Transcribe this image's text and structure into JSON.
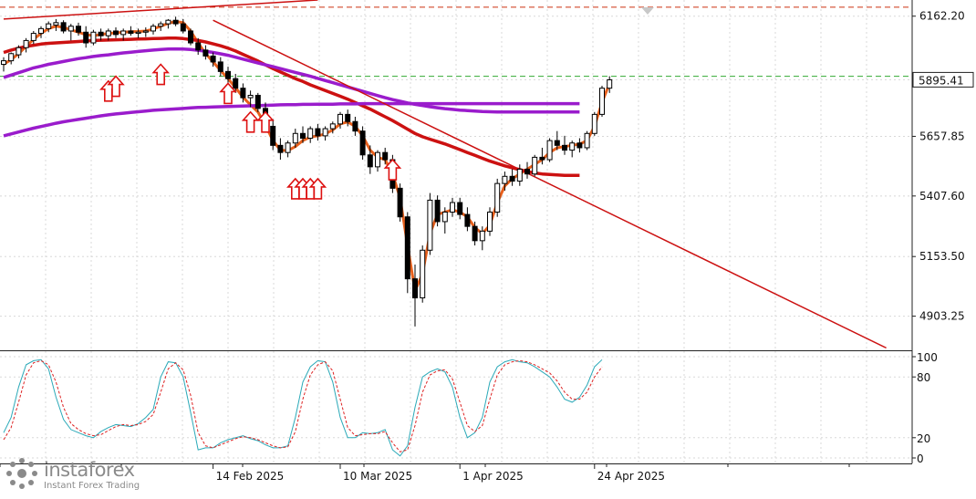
{
  "chart_data": [
    {
      "type": "candlestick",
      "ylim": [
        4760,
        6230
      ],
      "y_ticks": [
        "6162.20",
        "5895.41",
        "5657.85",
        "5407.60",
        "5153.50",
        "4903.25"
      ],
      "y_tick_values": [
        6162.2,
        5895.41,
        5657.85,
        5407.6,
        5153.5,
        4903.25
      ],
      "current_price": "5895.41",
      "date_labels": [
        "14 Feb 2025",
        "10 Mar 2025",
        "1 Apr 2025",
        "24 Apr 2025"
      ],
      "date_label_bar": [
        28,
        45,
        61,
        79
      ],
      "bar_count": 96,
      "candles": [
        [
          5960,
          5990,
          5930,
          5975
        ],
        [
          5975,
          6010,
          5960,
          6005
        ],
        [
          6000,
          6040,
          5985,
          6030
        ],
        [
          6030,
          6070,
          6010,
          6060
        ],
        [
          6060,
          6100,
          6045,
          6090
        ],
        [
          6090,
          6120,
          6070,
          6110
        ],
        [
          6110,
          6140,
          6095,
          6130
        ],
        [
          6125,
          6150,
          6100,
          6135
        ],
        [
          6135,
          6145,
          6090,
          6100
        ],
        [
          6100,
          6130,
          6060,
          6120
        ],
        [
          6120,
          6135,
          6080,
          6095
        ],
        [
          6095,
          6120,
          6030,
          6050
        ],
        [
          6050,
          6105,
          6040,
          6095
        ],
        [
          6095,
          6110,
          6060,
          6080
        ],
        [
          6080,
          6110,
          6060,
          6100
        ],
        [
          6100,
          6115,
          6070,
          6085
        ],
        [
          6085,
          6110,
          6060,
          6100
        ],
        [
          6100,
          6120,
          6080,
          6090
        ],
        [
          6090,
          6110,
          6070,
          6095
        ],
        [
          6095,
          6115,
          6075,
          6100
        ],
        [
          6100,
          6130,
          6085,
          6120
        ],
        [
          6120,
          6140,
          6100,
          6130
        ],
        [
          6130,
          6150,
          6110,
          6145
        ],
        [
          6145,
          6160,
          6120,
          6130
        ],
        [
          6130,
          6150,
          6090,
          6100
        ],
        [
          6100,
          6110,
          6040,
          6050
        ],
        [
          6050,
          6070,
          6000,
          6020
        ],
        [
          6020,
          6040,
          5980,
          5995
        ],
        [
          5995,
          6010,
          5950,
          5970
        ],
        [
          5970,
          5990,
          5910,
          5930
        ],
        [
          5930,
          5950,
          5880,
          5900
        ],
        [
          5900,
          5920,
          5840,
          5860
        ],
        [
          5860,
          5880,
          5800,
          5820
        ],
        [
          5820,
          5850,
          5780,
          5830
        ],
        [
          5830,
          5840,
          5760,
          5775
        ],
        [
          5775,
          5800,
          5680,
          5700
        ],
        [
          5700,
          5730,
          5600,
          5620
        ],
        [
          5620,
          5650,
          5560,
          5590
        ],
        [
          5590,
          5640,
          5570,
          5630
        ],
        [
          5630,
          5690,
          5610,
          5670
        ],
        [
          5670,
          5700,
          5630,
          5650
        ],
        [
          5650,
          5700,
          5630,
          5690
        ],
        [
          5690,
          5710,
          5640,
          5660
        ],
        [
          5660,
          5700,
          5640,
          5690
        ],
        [
          5690,
          5720,
          5670,
          5710
        ],
        [
          5710,
          5760,
          5690,
          5750
        ],
        [
          5750,
          5770,
          5700,
          5720
        ],
        [
          5720,
          5740,
          5660,
          5680
        ],
        [
          5680,
          5700,
          5560,
          5580
        ],
        [
          5580,
          5620,
          5500,
          5530
        ],
        [
          5530,
          5600,
          5510,
          5590
        ],
        [
          5590,
          5610,
          5540,
          5560
        ],
        [
          5560,
          5580,
          5420,
          5440
        ],
        [
          5440,
          5460,
          5300,
          5320
        ],
        [
          5320,
          5340,
          5000,
          5060
        ],
        [
          5060,
          5120,
          4860,
          4980
        ],
        [
          4980,
          5200,
          4960,
          5180
        ],
        [
          5180,
          5420,
          5160,
          5390
        ],
        [
          5390,
          5410,
          5280,
          5300
        ],
        [
          5300,
          5360,
          5250,
          5340
        ],
        [
          5340,
          5400,
          5320,
          5380
        ],
        [
          5380,
          5400,
          5310,
          5330
        ],
        [
          5330,
          5360,
          5260,
          5280
        ],
        [
          5280,
          5300,
          5200,
          5220
        ],
        [
          5220,
          5280,
          5180,
          5260
        ],
        [
          5260,
          5360,
          5240,
          5340
        ],
        [
          5340,
          5480,
          5320,
          5460
        ],
        [
          5460,
          5510,
          5430,
          5490
        ],
        [
          5490,
          5520,
          5450,
          5470
        ],
        [
          5470,
          5540,
          5450,
          5520
        ],
        [
          5520,
          5550,
          5480,
          5500
        ],
        [
          5500,
          5580,
          5490,
          5570
        ],
        [
          5570,
          5610,
          5540,
          5560
        ],
        [
          5560,
          5650,
          5550,
          5640
        ],
        [
          5640,
          5680,
          5600,
          5620
        ],
        [
          5620,
          5660,
          5580,
          5600
        ],
        [
          5600,
          5640,
          5570,
          5630
        ],
        [
          5630,
          5650,
          5590,
          5610
        ],
        [
          5610,
          5680,
          5600,
          5670
        ],
        [
          5670,
          5760,
          5660,
          5750
        ],
        [
          5750,
          5870,
          5740,
          5860
        ],
        [
          5860,
          5910,
          5840,
          5895
        ]
      ],
      "series": [
        {
          "color": "#e8601c",
          "values": [
            5960,
            5980,
            6005,
            6035,
            6065,
            6090,
            6110,
            6120,
            6115,
            6105,
            6095,
            6085,
            6080,
            6085,
            6090,
            6092,
            6095,
            6097,
            6098,
            6100,
            6108,
            6120,
            6132,
            6140,
            6135,
            6100,
            6050,
            6005,
            5970,
            5935,
            5900,
            5862,
            5822,
            5790,
            5760,
            5705,
            5640,
            5600,
            5598,
            5615,
            5640,
            5655,
            5660,
            5668,
            5685,
            5710,
            5718,
            5700,
            5660,
            5600,
            5570,
            5560,
            5500,
            5400,
            5200,
            5010,
            5080,
            5250,
            5330,
            5340,
            5350,
            5340,
            5320,
            5275,
            5250,
            5285,
            5380,
            5450,
            5480,
            5500,
            5520,
            5540,
            5560,
            5590,
            5610,
            5615,
            5620,
            5625,
            5640,
            5700,
            5800,
            5880
          ]
        },
        {
          "color": "#cc1111",
          "values": [
            6010,
            6020,
            6028,
            6035,
            6040,
            6045,
            6048,
            6050,
            6052,
            6054,
            6056,
            6058,
            6060,
            6061,
            6062,
            6063,
            6064,
            6065,
            6066,
            6067,
            6068,
            6069,
            6070,
            6070,
            6068,
            6064,
            6060,
            6054,
            6046,
            6038,
            6028,
            6016,
            6002,
            5988,
            5974,
            5958,
            5942,
            5928,
            5914,
            5900,
            5888,
            5874,
            5862,
            5850,
            5838,
            5826,
            5814,
            5800,
            5786,
            5772,
            5756,
            5740,
            5724,
            5706,
            5688,
            5670,
            5656,
            5646,
            5636,
            5626,
            5614,
            5602,
            5590,
            5578,
            5566,
            5554,
            5544,
            5534,
            5526,
            5518,
            5510,
            5504,
            5500,
            5498,
            5496,
            5494,
            5494,
            5494
          ]
        },
        {
          "color": "#9a1ccc",
          "values": [
            5905,
            5915,
            5925,
            5935,
            5945,
            5952,
            5960,
            5966,
            5972,
            5978,
            5984,
            5988,
            5993,
            5997,
            6000,
            6004,
            6008,
            6011,
            6014,
            6017,
            6020,
            6022,
            6024,
            6025,
            6024,
            6022,
            6019,
            6015,
            6010,
            6004,
            5998,
            5990,
            5982,
            5974,
            5966,
            5958,
            5950,
            5942,
            5934,
            5926,
            5918,
            5910,
            5901,
            5892,
            5883,
            5874,
            5865,
            5856,
            5847,
            5838,
            5829,
            5820,
            5812,
            5805,
            5798,
            5792,
            5787,
            5782,
            5778,
            5774,
            5771,
            5768,
            5766,
            5764,
            5762,
            5761,
            5760,
            5760,
            5760,
            5760,
            5760,
            5760,
            5760,
            5760,
            5760,
            5760,
            5760,
            5760
          ]
        },
        {
          "color": "#9a1ccc",
          "values": [
            5660,
            5668,
            5676,
            5684,
            5692,
            5699,
            5706,
            5713,
            5719,
            5724,
            5729,
            5734,
            5739,
            5744,
            5748,
            5752,
            5755,
            5758,
            5761,
            5764,
            5767,
            5769,
            5771,
            5773,
            5775,
            5777,
            5779,
            5780,
            5781,
            5782,
            5783,
            5784,
            5785,
            5786,
            5787,
            5788,
            5789,
            5790,
            5791,
            5791,
            5792,
            5792,
            5793,
            5793,
            5793,
            5794,
            5794,
            5794,
            5795,
            5795,
            5795,
            5795,
            5795,
            5795,
            5795,
            5795,
            5795,
            5795,
            5795,
            5795,
            5795,
            5795,
            5795,
            5795,
            5795,
            5795,
            5795,
            5795,
            5795,
            5795,
            5795,
            5795,
            5795,
            5795,
            5795,
            5795,
            5795,
            5795
          ]
        }
      ],
      "trendlines": [
        {
          "color": "#cc1111",
          "from": [
            28,
            6145
          ],
          "to": [
            118,
            4770
          ]
        },
        {
          "color": "#cc1111",
          "from": [
            0,
            6150
          ],
          "to": [
            42,
            6230
          ]
        }
      ],
      "hlines": [
        {
          "value": 6200,
          "color": "#cc3311",
          "style": "dashed"
        },
        {
          "value": 5910,
          "color": "#33aa33",
          "style": "dashed"
        }
      ],
      "arrow_bars": [
        14,
        15,
        21,
        30,
        33,
        35,
        39,
        40,
        41,
        42,
        52
      ],
      "arrow_values": [
        5890,
        5910,
        5960,
        5880,
        5760,
        5760,
        5480,
        5480,
        5480,
        5480,
        5560
      ]
    },
    {
      "type": "line",
      "ylim": [
        0,
        100
      ],
      "y_ticks": [
        "100",
        "80",
        "20",
        "0"
      ],
      "y_tick_values": [
        100,
        80,
        20,
        0
      ],
      "series": [
        {
          "color": "#2aa9b8",
          "values": [
            25,
            40,
            70,
            92,
            96,
            97,
            88,
            60,
            38,
            28,
            25,
            22,
            20,
            26,
            30,
            33,
            32,
            31,
            34,
            40,
            48,
            80,
            95,
            94,
            80,
            45,
            8,
            10,
            10,
            15,
            18,
            20,
            22,
            19,
            17,
            13,
            10,
            10,
            12,
            40,
            75,
            90,
            96,
            95,
            75,
            40,
            20,
            20,
            25,
            24,
            25,
            28,
            8,
            2,
            12,
            50,
            80,
            85,
            88,
            85,
            70,
            40,
            20,
            25,
            40,
            75,
            90,
            95,
            97,
            95,
            94,
            90,
            85,
            80,
            70,
            58,
            55,
            60,
            72,
            90,
            97
          ]
        },
        {
          "color": "#dd2222",
          "values": [
            18,
            30,
            55,
            82,
            94,
            96,
            92,
            75,
            50,
            34,
            28,
            24,
            22,
            23,
            27,
            31,
            33,
            32,
            33,
            36,
            43,
            65,
            88,
            94,
            87,
            62,
            25,
            12,
            10,
            13,
            16,
            19,
            21,
            20,
            18,
            15,
            12,
            10,
            11,
            26,
            58,
            82,
            92,
            95,
            86,
            58,
            30,
            22,
            23,
            24,
            24,
            26,
            15,
            6,
            8,
            32,
            65,
            82,
            86,
            87,
            78,
            55,
            32,
            26,
            32,
            58,
            82,
            92,
            95,
            96,
            95,
            92,
            88,
            84,
            76,
            65,
            58,
            58,
            65,
            80,
            90
          ]
        }
      ]
    }
  ],
  "logo": {
    "brand": "instaforex",
    "tagline": "Instant Forex Trading"
  }
}
